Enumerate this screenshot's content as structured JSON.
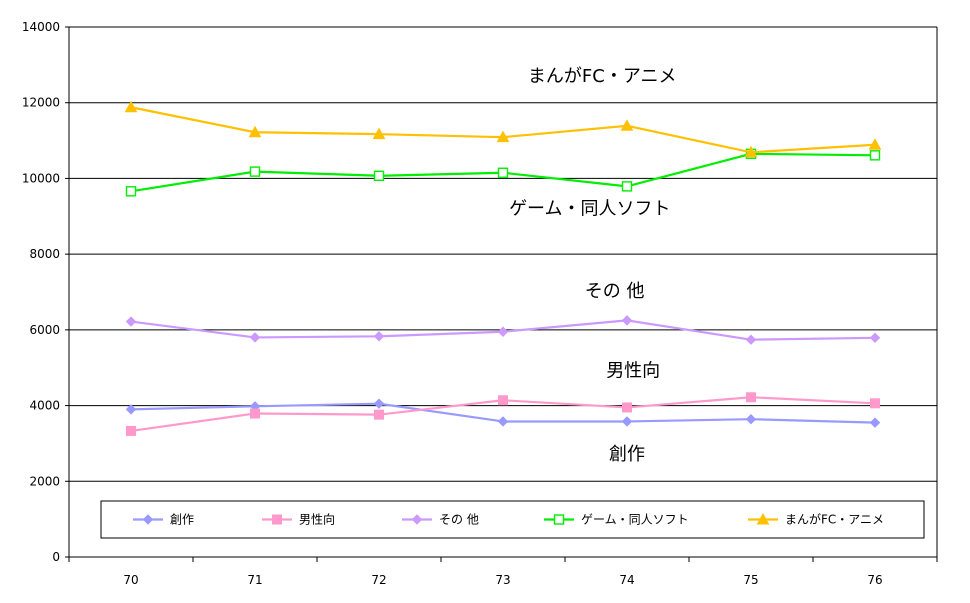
{
  "chart_data": {
    "type": "line",
    "title": "",
    "xlabel": "",
    "ylabel": "",
    "categories": [
      "70",
      "71",
      "72",
      "73",
      "74",
      "75",
      "76"
    ],
    "ylim": [
      0,
      14000
    ],
    "yticks": [
      "0",
      "2000",
      "4000",
      "6000",
      "8000",
      "10000",
      "12000",
      "14000"
    ],
    "grid": "horizontal",
    "legend_position": "bottom-inside",
    "series": [
      {
        "name": "創作",
        "values": [
          3900,
          3980,
          4050,
          3580,
          3580,
          3640,
          3550
        ],
        "color": "#9999ff",
        "marker": "diamond"
      },
      {
        "name": "男性向",
        "values": [
          3330,
          3790,
          3760,
          4140,
          3950,
          4220,
          4060
        ],
        "color": "#ff99cc",
        "marker": "square"
      },
      {
        "name": "その 他",
        "values": [
          6220,
          5800,
          5830,
          5950,
          6250,
          5740,
          5790
        ],
        "color": "#cc99ff",
        "marker": "diamond"
      },
      {
        "name": "ゲーム・同人ソフト",
        "values": [
          9660,
          10180,
          10070,
          10150,
          9790,
          10650,
          10610
        ],
        "color": "#00ee00",
        "marker": "hollow-square"
      },
      {
        "name": "まんがFC・アニメ",
        "values": [
          11880,
          11220,
          11170,
          11090,
          11390,
          10690,
          10890
        ],
        "color": "#ffc000",
        "marker": "triangle"
      }
    ],
    "annotations": [
      {
        "text": "まんがFC・アニメ",
        "x": 3.8,
        "y": 12550
      },
      {
        "text": "ゲーム・同人ソフト",
        "x": 3.7,
        "y": 9050
      },
      {
        "text": "その 他",
        "x": 3.9,
        "y": 6870
      },
      {
        "text": "男性向",
        "x": 4.05,
        "y": 4770
      },
      {
        "text": "創作",
        "x": 4.0,
        "y": 2560
      }
    ]
  }
}
